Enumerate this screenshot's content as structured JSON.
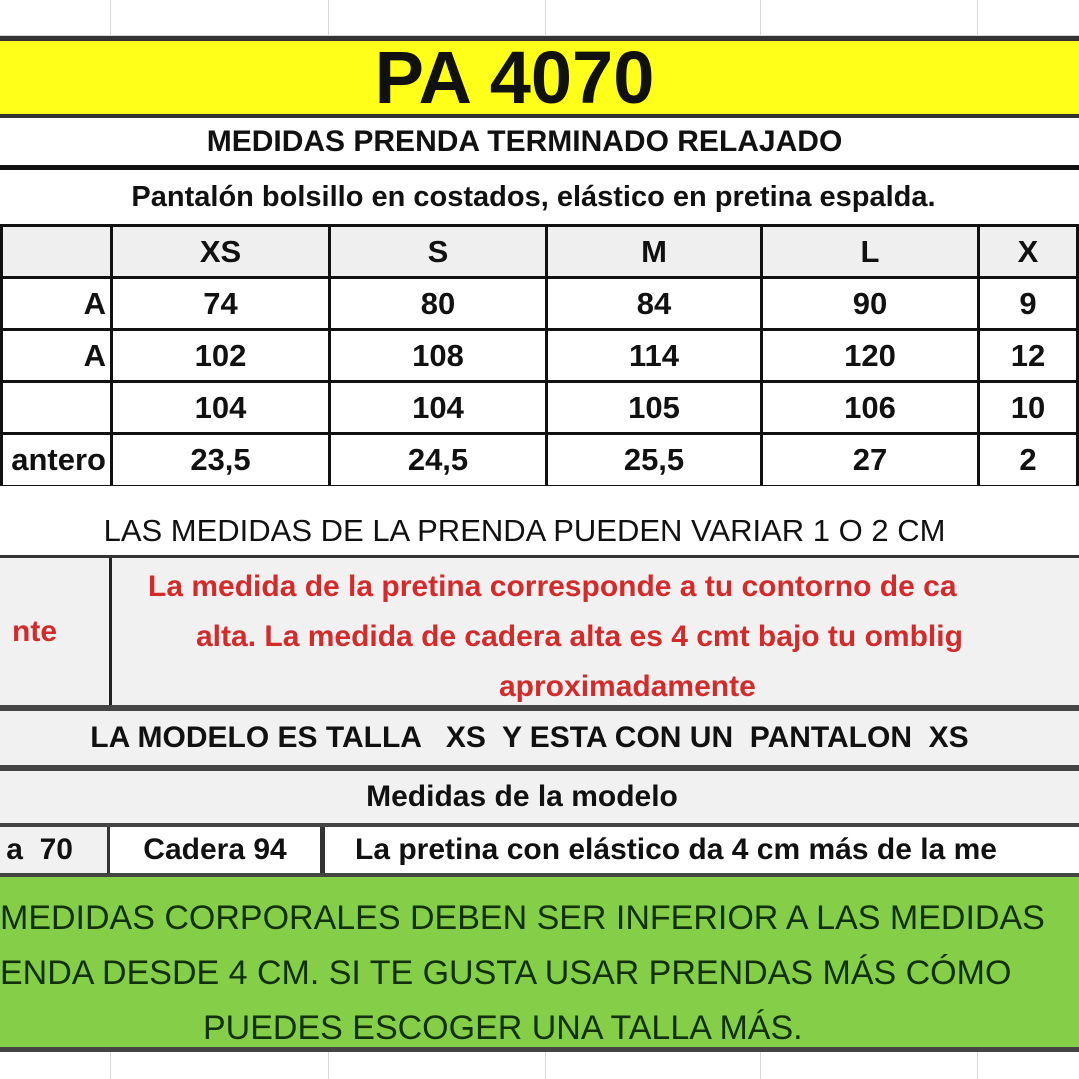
{
  "title": "PA 4070",
  "subtitle": "MEDIDAS PRENDA TERMINADO RELAJADO",
  "description": "Pantalón bolsillo en costados, elástico en pretina espalda.",
  "table": {
    "headers": [
      "",
      "XS",
      "S",
      "M",
      "L",
      "X"
    ],
    "rows": [
      {
        "label": "A",
        "values": [
          "74",
          "80",
          "84",
          "90",
          "9"
        ]
      },
      {
        "label": "A",
        "values": [
          "102",
          "108",
          "114",
          "120",
          "12"
        ]
      },
      {
        "label": "",
        "values": [
          "104",
          "104",
          "105",
          "106",
          "10"
        ]
      },
      {
        "label": "antero",
        "values": [
          "23,5",
          "24,5",
          "25,5",
          "27",
          "2"
        ]
      }
    ]
  },
  "variance_note": "LAS MEDIDAS DE LA PRENDA PUEDEN VARIAR 1 O 2 CM",
  "important": {
    "label": "nte",
    "lines": [
      "La medida de la pretina corresponde a tu contorno de ca",
      "alta. La medida de cadera alta es 4 cmt bajo tu omblig",
      "aproximadamente"
    ],
    "color": "#d42a2a"
  },
  "model_size": "LA MODELO ES TALLA   XS  Y ESTA CON UN  PANTALON  XS",
  "model_heading": "Medidas de la modelo",
  "model_cells": [
    "a  70",
    "Cadera 94",
    "La pretina con elástico da 4 cm más de la me"
  ],
  "advice": {
    "lines": [
      "MEDIDAS CORPORALES DEBEN SER INFERIOR A LAS MEDIDAS",
      "ENDA DESDE 4 CM. SI TE GUSTA USAR PRENDAS MÁS CÓMO",
      "PUEDES ESCOGER UNA TALLA MÁS."
    ],
    "background": "#84cf47",
    "color": "#12300c"
  },
  "title_background": "#ffff1a"
}
